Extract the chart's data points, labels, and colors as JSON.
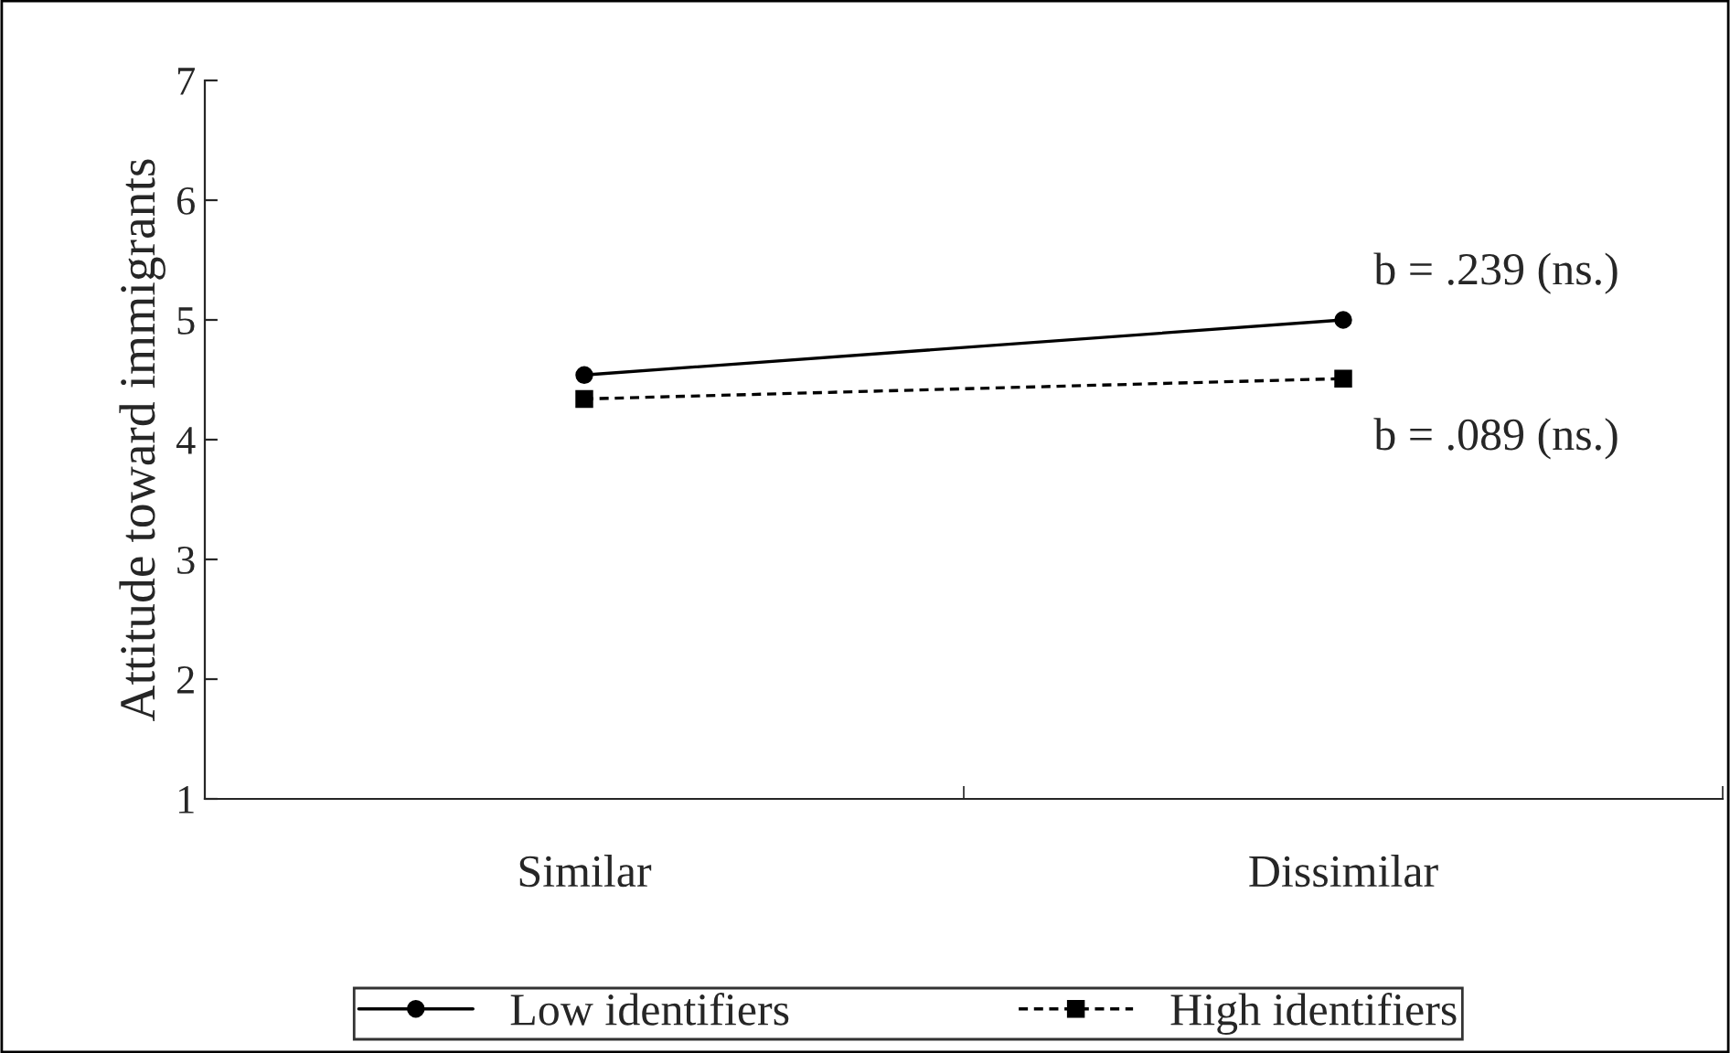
{
  "chart_data": {
    "type": "line",
    "ylabel": "Attitude toward immigrants",
    "categories": [
      "Similar",
      "Dissimilar"
    ],
    "series": [
      {
        "name": "Low identifiers",
        "color": "#000000",
        "values": [
          4.54,
          5.0
        ],
        "marker": "circle",
        "line_style": "solid"
      },
      {
        "name": "High identifiers",
        "color": "#000000",
        "values": [
          4.34,
          4.51
        ],
        "marker": "square",
        "line_style": "dotted"
      }
    ],
    "ylim": [
      1,
      7
    ],
    "yticks": [
      1,
      2,
      3,
      4,
      5,
      6,
      7
    ],
    "grid": false,
    "legend": "bottom",
    "annotations": [
      {
        "text": "b = .239 (ns.)",
        "x": "Dissimilar",
        "y": 5.0
      },
      {
        "text": "b = .089 (ns.)",
        "x": "Dissimilar",
        "y": 4.51
      }
    ]
  }
}
